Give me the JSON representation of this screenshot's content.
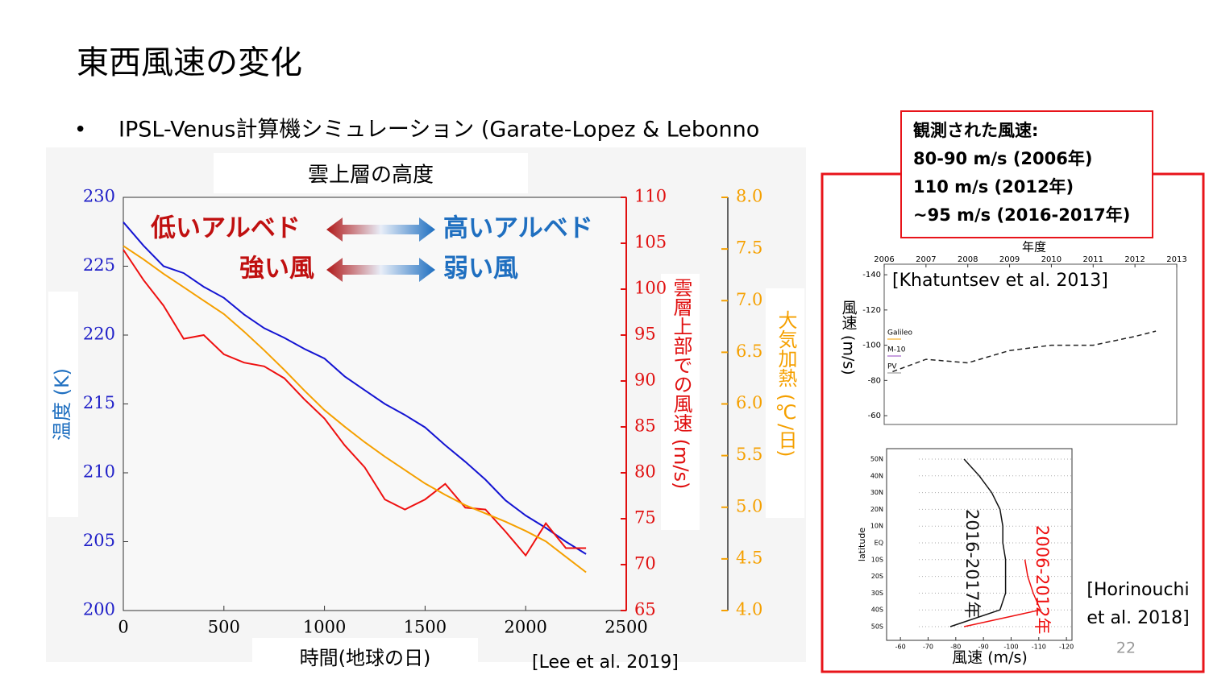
{
  "slide": {
    "title": "東西風速の変化",
    "bullet": "IPSL-Venus計算機シミュレーション (Garate-Lopez & Lebonno",
    "callout": [
      "観測された風速:",
      "80-90 m/s (2006年)",
      "110 m/s (2012年)",
      "~95 m/s (2016-2017年)"
    ],
    "page_number": "22"
  },
  "chart_data": [
    {
      "type": "line",
      "title": "雲上層の高度",
      "xlabel": "時間(地球の日)",
      "ylabel": "温度 (K)",
      "y2label": "雲層上部での風速 (m/s)",
      "y3label": "大気加熱 (℃/日)",
      "source": "[Lee et al. 2019]",
      "annotations": [
        "低いアルベド",
        "高いアルベド",
        "強い風",
        "弱い風"
      ],
      "x": [
        0,
        100,
        200,
        300,
        400,
        500,
        600,
        700,
        800,
        900,
        1000,
        1100,
        1200,
        1300,
        1400,
        1500,
        1600,
        1700,
        1800,
        1900,
        2000,
        2100,
        2200,
        2300
      ],
      "xlim": [
        0,
        2500
      ],
      "xticks": [
        0,
        500,
        1000,
        1500,
        2000,
        2500
      ],
      "ylim": [
        200,
        230
      ],
      "yticks": [
        200,
        205,
        210,
        215,
        220,
        225,
        230
      ],
      "y2lim": [
        65,
        110
      ],
      "y2ticks": [
        65,
        70,
        75,
        80,
        85,
        90,
        95,
        100,
        105,
        110
      ],
      "y3lim": [
        4,
        8
      ],
      "y3ticks": [
        {
          "value": 4,
          "label": "4.0"
        },
        {
          "value": 4.5,
          "label": "4.5"
        },
        {
          "value": 5,
          "label": "5.0"
        },
        {
          "value": 5.5,
          "label": "5.5"
        },
        {
          "value": 6,
          "label": "6.0"
        },
        {
          "value": 6.5,
          "label": "6.5"
        },
        {
          "value": 7,
          "label": "7.0"
        },
        {
          "value": 7.5,
          "label": "7.5"
        },
        {
          "value": 8,
          "label": "8.0"
        }
      ],
      "series": [
        {
          "color": "#1414d2",
          "axis": "y",
          "values": [
            228.2,
            226.5,
            225,
            224.5,
            223.5,
            222.7,
            221.5,
            220.5,
            219.8,
            219,
            218.3,
            217,
            216,
            215,
            214.2,
            213.3,
            212,
            210.8,
            209.5,
            208,
            206.9,
            206,
            205,
            204.1
          ]
        },
        {
          "color": "#ee1010",
          "axis": "y2",
          "values": [
            104.3,
            101,
            98.2,
            94.6,
            95,
            92.9,
            92,
            91.6,
            90.3,
            88,
            85.9,
            83,
            80.6,
            77.1,
            76,
            77.1,
            78.8,
            76.2,
            76,
            73.6,
            71,
            74.5,
            71.8,
            71.8
          ]
        },
        {
          "color": "#f5a000",
          "axis": "y3",
          "values": [
            7.53,
            7.4,
            7.26,
            7.13,
            7.0,
            6.87,
            6.7,
            6.52,
            6.33,
            6.13,
            5.94,
            5.78,
            5.63,
            5.49,
            5.36,
            5.23,
            5.12,
            5.02,
            4.94,
            4.86,
            4.77,
            4.67,
            4.52,
            4.37
          ]
        }
      ]
    },
    {
      "type": "line",
      "xlabel": "年度",
      "ylabel": "風速 (m/s)",
      "source": "[Khatuntsev et al. 2013]",
      "legend": [
        "Galileo",
        "M-10",
        "PV"
      ],
      "xlim": [
        2006,
        2013
      ],
      "xticks": [
        2006,
        2007,
        2008,
        2009,
        2010,
        2011,
        2012,
        2013
      ],
      "ylim": [
        -55,
        -146
      ],
      "yticks": [
        -140,
        -120,
        -100,
        -80,
        -60
      ],
      "series": [
        {
          "color": "#222222",
          "dash": true,
          "x": [
            2006.2,
            2007,
            2008,
            2009,
            2010,
            2011,
            2012,
            2012.5
          ],
          "values": [
            -85,
            -92,
            -90,
            -97,
            -100,
            -100,
            -105,
            -108
          ]
        }
      ]
    },
    {
      "type": "hline",
      "xlabel": "風速 (m/s)",
      "ylabel": "latitude",
      "source": "[Horinouchi et al. 2018]",
      "categories": [
        "50S",
        "40S",
        "30S",
        "20S",
        "10S",
        "EQ",
        "10N",
        "20N",
        "30N",
        "40N",
        "50N"
      ],
      "xlim": [
        -55,
        -122
      ],
      "xticks": [
        -60,
        -70,
        -80,
        -90,
        -100,
        -110,
        -120
      ],
      "series": [
        {
          "name": "2016-2017年",
          "color": "#111111",
          "values": [
            -78,
            -96,
            -98,
            -98,
            -98,
            -97,
            -97,
            -96,
            -93,
            -88.5,
            -83
          ]
        },
        {
          "name": "2006-2012年",
          "color": "#ee1010",
          "values": [
            -83,
            -110.6,
            -108,
            -106,
            -105,
            null,
            null,
            null,
            null,
            null,
            null
          ]
        }
      ]
    }
  ]
}
